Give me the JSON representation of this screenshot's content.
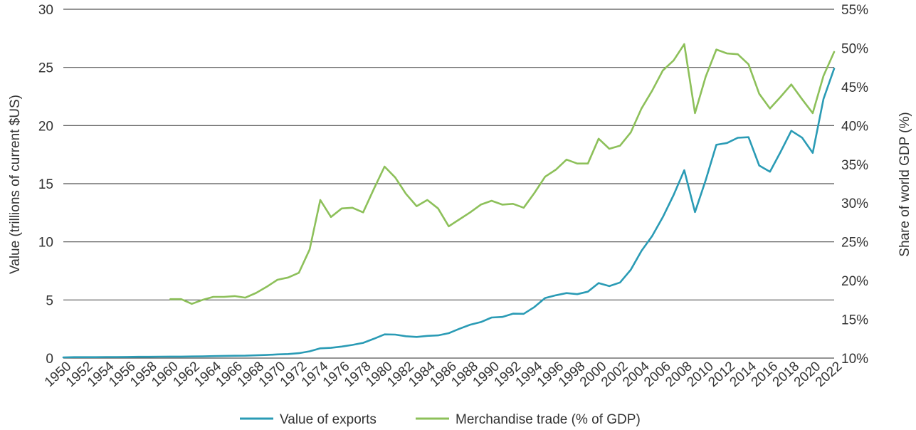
{
  "chart_data": {
    "type": "line",
    "xlabel": "",
    "ylabel": "Value (trillions of current $US)",
    "y2label": "Share of world GDP (%)",
    "ylim": [
      0,
      30
    ],
    "y2lim": [
      10,
      55
    ],
    "xlim": [
      1950,
      2022
    ],
    "y_ticks": [
      0,
      5,
      10,
      15,
      20,
      25,
      30
    ],
    "y2_ticks": [
      "10%",
      "15%",
      "20%",
      "25%",
      "30%",
      "35%",
      "40%",
      "45%",
      "50%",
      "55%"
    ],
    "x_ticks": [
      "1950",
      "1952",
      "1954",
      "1956",
      "1958",
      "1960",
      "1962",
      "1964",
      "1966",
      "1968",
      "1970",
      "1972",
      "1974",
      "1976",
      "1978",
      "1980",
      "1982",
      "1984",
      "1986",
      "1988",
      "1990",
      "1992",
      "1994",
      "1996",
      "1998",
      "2000",
      "2002",
      "2004",
      "2006",
      "2008",
      "2010",
      "2012",
      "2014",
      "2016",
      "2018",
      "2020",
      "2022"
    ],
    "grid": "horizontal",
    "legend_position": "bottom",
    "series": [
      {
        "name": "Value of exports",
        "axis": "left",
        "color": "#2a9bb5",
        "x": [
          1950,
          1951,
          1952,
          1953,
          1954,
          1955,
          1956,
          1957,
          1958,
          1959,
          1960,
          1961,
          1962,
          1963,
          1964,
          1965,
          1966,
          1967,
          1968,
          1969,
          1970,
          1971,
          1972,
          1973,
          1974,
          1975,
          1976,
          1977,
          1978,
          1979,
          1980,
          1981,
          1982,
          1983,
          1984,
          1985,
          1986,
          1987,
          1988,
          1989,
          1990,
          1991,
          1992,
          1993,
          1994,
          1995,
          1996,
          1997,
          1998,
          1999,
          2000,
          2001,
          2002,
          2003,
          2004,
          2005,
          2006,
          2007,
          2008,
          2009,
          2010,
          2011,
          2012,
          2013,
          2014,
          2015,
          2016,
          2017,
          2018,
          2019,
          2020,
          2021,
          2022
        ],
        "values": [
          0.06,
          0.08,
          0.08,
          0.08,
          0.09,
          0.09,
          0.1,
          0.11,
          0.11,
          0.12,
          0.13,
          0.13,
          0.14,
          0.15,
          0.17,
          0.19,
          0.2,
          0.21,
          0.24,
          0.27,
          0.32,
          0.35,
          0.42,
          0.58,
          0.84,
          0.88,
          0.99,
          1.13,
          1.31,
          1.66,
          2.04,
          2.02,
          1.88,
          1.82,
          1.91,
          1.95,
          2.14,
          2.52,
          2.87,
          3.1,
          3.49,
          3.54,
          3.82,
          3.81,
          4.39,
          5.17,
          5.4,
          5.59,
          5.5,
          5.71,
          6.45,
          6.19,
          6.5,
          7.59,
          9.22,
          10.5,
          12.13,
          14.02,
          16.16,
          12.56,
          15.3,
          18.34,
          18.5,
          18.95,
          19.0,
          16.56,
          16.03,
          17.74,
          19.55,
          18.96,
          17.65,
          22.28,
          24.9
        ]
      },
      {
        "name": "Merchandise trade (% of GDP)",
        "axis": "right",
        "color": "#8dc05a",
        "x": [
          1960,
          1961,
          1962,
          1963,
          1964,
          1965,
          1966,
          1967,
          1968,
          1969,
          1970,
          1971,
          1972,
          1973,
          1974,
          1975,
          1976,
          1977,
          1978,
          1979,
          1980,
          1981,
          1982,
          1983,
          1984,
          1985,
          1986,
          1987,
          1988,
          1989,
          1990,
          1991,
          1992,
          1993,
          1994,
          1995,
          1996,
          1997,
          1998,
          1999,
          2000,
          2001,
          2002,
          2003,
          2004,
          2005,
          2006,
          2007,
          2008,
          2009,
          2010,
          2011,
          2012,
          2013,
          2014,
          2015,
          2016,
          2017,
          2018,
          2019,
          2020,
          2021,
          2022
        ],
        "values": [
          17.6,
          17.6,
          17.0,
          17.5,
          17.9,
          17.9,
          18.0,
          17.8,
          18.4,
          19.2,
          20.1,
          20.4,
          21.0,
          24.0,
          30.4,
          28.2,
          29.3,
          29.4,
          28.8,
          31.8,
          34.7,
          33.3,
          31.2,
          29.6,
          30.4,
          29.3,
          27.0,
          27.9,
          28.8,
          29.8,
          30.3,
          29.8,
          29.9,
          29.4,
          31.3,
          33.4,
          34.3,
          35.6,
          35.1,
          35.1,
          38.3,
          37.0,
          37.4,
          39.1,
          42.2,
          44.5,
          47.1,
          48.4,
          50.5,
          41.6,
          46.3,
          49.8,
          49.3,
          49.2,
          47.9,
          44.1,
          42.2,
          43.7,
          45.3,
          43.4,
          41.6,
          46.4,
          49.5
        ]
      }
    ]
  }
}
